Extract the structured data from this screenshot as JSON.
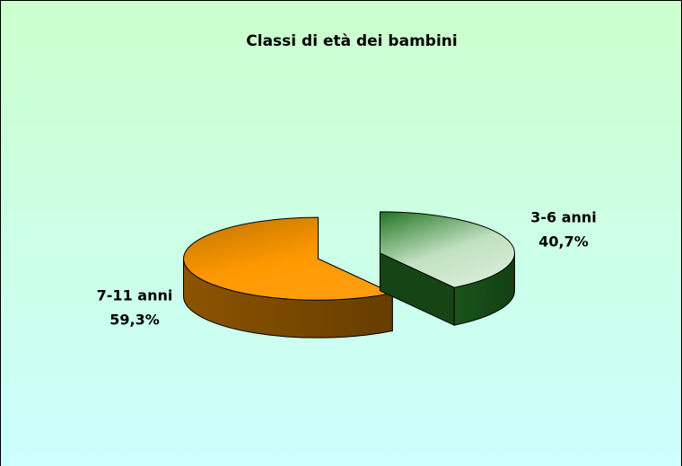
{
  "chart_data": {
    "type": "pie3d",
    "title": "Classi di età dei bambini",
    "categories": [
      "3-6 anni",
      "7-11 anni"
    ],
    "values": [
      40.7,
      59.3
    ],
    "value_labels": [
      "40,7%",
      "59,3%"
    ],
    "colors": [
      "#2f9a2f",
      "#ff9900"
    ]
  }
}
